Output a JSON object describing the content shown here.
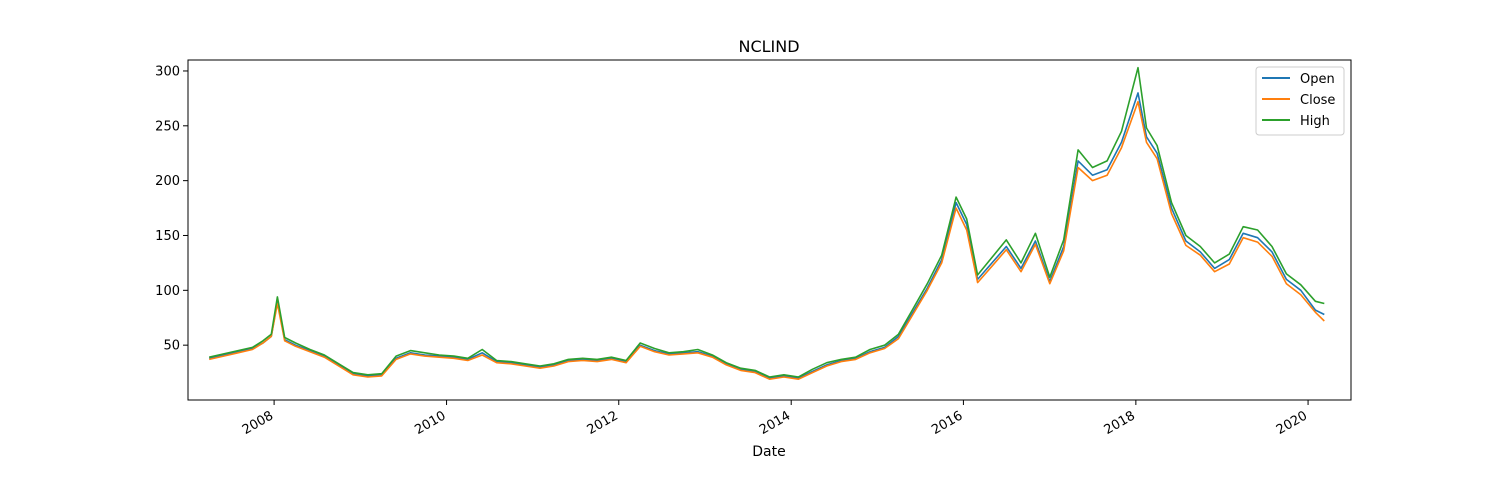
{
  "chart_data": {
    "type": "line",
    "title": "NCLIND",
    "xlabel": "Date",
    "ylabel": "",
    "xlim": [
      "2007-01-01",
      "2020-07-01"
    ],
    "ylim": [
      0,
      310
    ],
    "x_ticks": [
      "2008",
      "2010",
      "2012",
      "2014",
      "2016",
      "2018",
      "2020"
    ],
    "y_ticks": [
      50,
      100,
      150,
      200,
      250,
      300
    ],
    "grid": false,
    "legend_position": "top-right",
    "x": [
      "2007-04-01",
      "2007-06-01",
      "2007-08-01",
      "2007-10-01",
      "2007-11-15",
      "2007-12-20",
      "2008-01-15",
      "2008-02-15",
      "2008-04-01",
      "2008-06-01",
      "2008-08-01",
      "2008-10-01",
      "2008-12-01",
      "2009-02-01",
      "2009-04-01",
      "2009-06-01",
      "2009-08-01",
      "2009-10-01",
      "2009-12-01",
      "2010-02-01",
      "2010-04-01",
      "2010-06-01",
      "2010-08-01",
      "2010-10-01",
      "2010-12-01",
      "2011-02-01",
      "2011-04-01",
      "2011-06-01",
      "2011-08-01",
      "2011-10-01",
      "2011-12-01",
      "2012-02-01",
      "2012-04-01",
      "2012-06-01",
      "2012-08-01",
      "2012-10-01",
      "2012-12-01",
      "2013-02-01",
      "2013-04-01",
      "2013-06-01",
      "2013-08-01",
      "2013-10-01",
      "2013-12-01",
      "2014-02-01",
      "2014-04-01",
      "2014-06-01",
      "2014-08-01",
      "2014-10-01",
      "2014-12-01",
      "2015-02-01",
      "2015-04-01",
      "2015-06-01",
      "2015-08-01",
      "2015-10-01",
      "2015-12-01",
      "2016-01-15",
      "2016-03-01",
      "2016-05-01",
      "2016-07-01",
      "2016-09-01",
      "2016-11-01",
      "2017-01-01",
      "2017-03-01",
      "2017-05-01",
      "2017-07-01",
      "2017-09-01",
      "2017-11-01",
      "2018-01-10",
      "2018-02-15",
      "2018-04-01",
      "2018-06-01",
      "2018-08-01",
      "2018-10-01",
      "2018-12-01",
      "2019-02-01",
      "2019-04-01",
      "2019-06-01",
      "2019-08-01",
      "2019-10-01",
      "2019-12-01",
      "2020-02-01",
      "2020-03-10"
    ],
    "series": [
      {
        "name": "Open",
        "color": "#1f77b4",
        "values": [
          38,
          41,
          44,
          47,
          52,
          58,
          90,
          55,
          50,
          45,
          40,
          32,
          24,
          22,
          23,
          38,
          43,
          41,
          40,
          39,
          37,
          43,
          35,
          34,
          32,
          30,
          32,
          36,
          37,
          36,
          38,
          35,
          50,
          45,
          42,
          43,
          44,
          40,
          33,
          28,
          26,
          20,
          22,
          20,
          26,
          32,
          36,
          38,
          44,
          48,
          58,
          80,
          102,
          128,
          180,
          160,
          110,
          125,
          140,
          120,
          145,
          108,
          140,
          218,
          205,
          210,
          235,
          280,
          240,
          225,
          175,
          145,
          135,
          120,
          128,
          152,
          148,
          135,
          110,
          100,
          82,
          78
        ]
      },
      {
        "name": "Close",
        "color": "#ff7f0e",
        "values": [
          37,
          40,
          43,
          46,
          52,
          58,
          88,
          54,
          49,
          44,
          39,
          31,
          23,
          21,
          22,
          37,
          42,
          40,
          39,
          38,
          36,
          41,
          34,
          33,
          31,
          29,
          31,
          35,
          36,
          35,
          37,
          34,
          49,
          44,
          41,
          42,
          43,
          39,
          32,
          27,
          25,
          19,
          21,
          19,
          25,
          31,
          35,
          37,
          43,
          47,
          56,
          78,
          100,
          125,
          175,
          155,
          107,
          122,
          137,
          117,
          142,
          106,
          136,
          212,
          200,
          205,
          230,
          272,
          235,
          220,
          170,
          141,
          132,
          117,
          124,
          148,
          144,
          131,
          106,
          96,
          80,
          72
        ]
      },
      {
        "name": "High",
        "color": "#2ca02c",
        "values": [
          39,
          42,
          45,
          48,
          54,
          60,
          94,
          57,
          52,
          46,
          41,
          33,
          25,
          23,
          24,
          40,
          45,
          43,
          41,
          40,
          38,
          46,
          36,
          35,
          33,
          31,
          33,
          37,
          38,
          37,
          39,
          36,
          52,
          47,
          43,
          44,
          46,
          41,
          34,
          29,
          27,
          21,
          23,
          21,
          28,
          34,
          37,
          39,
          46,
          50,
          60,
          83,
          106,
          132,
          185,
          165,
          114,
          130,
          146,
          125,
          152,
          112,
          146,
          228,
          212,
          218,
          245,
          303,
          248,
          232,
          180,
          150,
          140,
          125,
          133,
          158,
          155,
          140,
          115,
          105,
          90,
          88
        ]
      }
    ]
  }
}
